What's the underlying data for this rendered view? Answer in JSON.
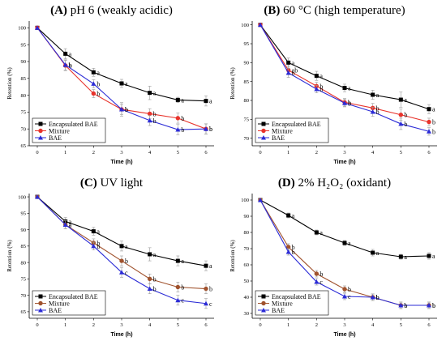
{
  "chart_data": [
    {
      "type": "line",
      "label": "(A)",
      "title": "pH 6 (weakly acidic)",
      "xlabel": "Time (h)",
      "ylabel": "Retention (%)",
      "x": [
        0,
        1,
        2,
        3,
        4,
        5,
        6
      ],
      "ylim": [
        65,
        102
      ],
      "yticks": [
        65,
        70,
        75,
        80,
        85,
        90,
        95,
        100
      ],
      "legend_position": "bottom-left",
      "series": [
        {
          "name": "Encapsulated BAE",
          "color": "#000000",
          "marker": "square",
          "values": [
            100,
            92.3,
            86.8,
            83.5,
            80.7,
            78.6,
            78.3
          ],
          "errors": [
            0,
            1.5,
            1.2,
            1.2,
            2.0,
            0.8,
            1.5
          ],
          "letters": [
            "",
            "a",
            "a",
            "a",
            "a",
            "a",
            "a"
          ]
        },
        {
          "name": "Mixture",
          "color": "#e8332b",
          "marker": "circle",
          "values": [
            100,
            88.8,
            80.5,
            75.8,
            74.5,
            73.2,
            70.0
          ],
          "errors": [
            0,
            1.5,
            1.2,
            1.5,
            1.5,
            1.5,
            1.5
          ],
          "letters": [
            "",
            "b",
            "b",
            "b",
            "b",
            "b",
            "b"
          ]
        },
        {
          "name": "BAE",
          "color": "#2b2bd6",
          "marker": "triangle",
          "values": [
            100,
            89.0,
            83.4,
            75.8,
            72.5,
            69.8,
            70.0
          ],
          "errors": [
            0,
            1.5,
            1.2,
            2.0,
            1.5,
            1.5,
            1.5
          ],
          "letters": [
            "",
            "b",
            "b",
            "b",
            "b",
            "b",
            "b"
          ]
        }
      ]
    },
    {
      "type": "line",
      "label": "(B)",
      "title": "60 °C (high temperature)",
      "xlabel": "Time (h)",
      "ylabel": "Retention (%)",
      "x": [
        0,
        1,
        2,
        3,
        4,
        5,
        6
      ],
      "ylim": [
        68,
        101
      ],
      "yticks": [
        70,
        75,
        80,
        85,
        90,
        95,
        100
      ],
      "legend_position": "bottom-left",
      "series": [
        {
          "name": "Encapsulated BAE",
          "color": "#000000",
          "marker": "square",
          "values": [
            100,
            90.0,
            86.5,
            83.3,
            81.5,
            80.2,
            77.7
          ],
          "errors": [
            0,
            1.2,
            1.2,
            1.0,
            1.2,
            2.0,
            1.2
          ],
          "letters": [
            "",
            "a",
            "a",
            "a",
            "a",
            "a",
            "a"
          ]
        },
        {
          "name": "Mixture",
          "color": "#e8332b",
          "marker": "circle",
          "values": [
            100,
            88.0,
            83.8,
            79.5,
            78.0,
            76.2,
            74.3
          ],
          "errors": [
            0,
            1.2,
            1.0,
            1.0,
            1.2,
            1.5,
            1.0
          ],
          "letters": [
            "",
            "ab",
            "b",
            "b",
            "b",
            "b",
            "b"
          ]
        },
        {
          "name": "BAE",
          "color": "#2b2bd6",
          "marker": "triangle",
          "values": [
            100,
            87.3,
            83.0,
            79.3,
            77.0,
            73.8,
            71.8
          ],
          "errors": [
            0,
            1.2,
            1.0,
            1.0,
            1.2,
            1.5,
            1.0
          ],
          "letters": [
            "",
            "b",
            "b",
            "b",
            "b",
            "b",
            "b"
          ]
        }
      ]
    },
    {
      "type": "line",
      "label": "(C)",
      "title": "UV light",
      "xlabel": "Time (h)",
      "ylabel": "Retention (%)",
      "x": [
        0,
        1,
        2,
        3,
        4,
        5,
        6
      ],
      "ylim": [
        63,
        101
      ],
      "yticks": [
        65,
        70,
        75,
        80,
        85,
        90,
        95,
        100
      ],
      "legend_position": "bottom-left",
      "series": [
        {
          "name": "Encapsulated BAE",
          "color": "#000000",
          "marker": "square",
          "values": [
            100,
            92.5,
            89.5,
            85.0,
            82.5,
            80.5,
            79.0
          ],
          "errors": [
            0,
            1.2,
            1.2,
            1.5,
            2.0,
            1.5,
            1.5
          ],
          "letters": [
            "",
            "a",
            "a",
            "a",
            "a",
            "a",
            "a"
          ]
        },
        {
          "name": "Mixture",
          "color": "#a0522d",
          "marker": "circle",
          "values": [
            100,
            91.5,
            86.0,
            80.5,
            75.0,
            72.5,
            72.0
          ],
          "errors": [
            0,
            1.2,
            1.2,
            1.5,
            1.5,
            1.5,
            1.5
          ],
          "letters": [
            "",
            "a",
            "b",
            "b",
            "b",
            "b",
            "b"
          ]
        },
        {
          "name": "BAE",
          "color": "#2b2bd6",
          "marker": "triangle",
          "values": [
            100,
            91.5,
            85.0,
            77.0,
            72.0,
            68.5,
            67.5
          ],
          "errors": [
            0,
            1.2,
            1.2,
            1.5,
            1.5,
            1.5,
            1.5
          ],
          "letters": [
            "",
            "a",
            "b",
            "c",
            "b",
            "c",
            "c"
          ]
        }
      ]
    },
    {
      "type": "line",
      "label": "(D)",
      "title": "2% H₂O₂ (oxidant)",
      "xlabel": "Time (h)",
      "ylabel": "Retention (%)",
      "x": [
        0,
        1,
        2,
        3,
        4,
        5,
        6
      ],
      "ylim": [
        27,
        104
      ],
      "yticks": [
        30,
        40,
        50,
        60,
        70,
        80,
        90,
        100
      ],
      "legend_position": "bottom-left",
      "series": [
        {
          "name": "Encapsulated BAE",
          "color": "#000000",
          "marker": "square",
          "values": [
            100,
            90.5,
            80.0,
            73.5,
            67.5,
            65.0,
            65.5
          ],
          "errors": [
            0,
            1.5,
            1.5,
            1.5,
            2.0,
            1.5,
            2.0
          ],
          "letters": [
            "",
            "a",
            "a",
            "a",
            "a",
            "a",
            "a"
          ]
        },
        {
          "name": "Mixture",
          "color": "#a0522d",
          "marker": "circle",
          "values": [
            100,
            71.0,
            54.5,
            45.0,
            40.0,
            35.0,
            35.0
          ],
          "errors": [
            0,
            2.0,
            2.0,
            2.0,
            2.0,
            2.0,
            2.0
          ],
          "letters": [
            "",
            "b",
            "b",
            "b",
            "b",
            "b",
            "b"
          ]
        },
        {
          "name": "BAE",
          "color": "#2b2bd6",
          "marker": "triangle",
          "values": [
            100,
            68.0,
            49.5,
            40.5,
            40.0,
            35.0,
            35.0
          ],
          "errors": [
            0,
            2.0,
            2.0,
            2.0,
            2.0,
            2.0,
            2.0
          ],
          "letters": [
            "",
            "b",
            "c",
            "c",
            "b",
            "b",
            "b"
          ]
        }
      ]
    }
  ]
}
